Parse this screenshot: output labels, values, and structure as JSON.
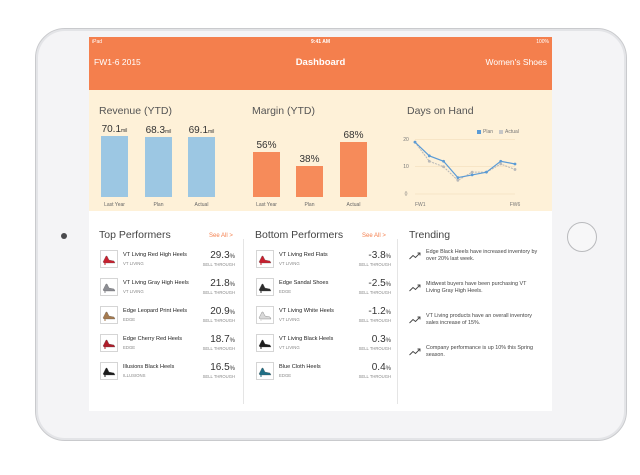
{
  "status": {
    "carrier": "iPad",
    "time": "9:41 AM",
    "battery": "100%"
  },
  "nav": {
    "left": "FW1-6 2015",
    "title": "Dashboard",
    "right": "Women's Shoes"
  },
  "colors": {
    "header": "#f47f4d",
    "kpi_bg": "#fef1d8",
    "revenue_bar": "#9cc7e3",
    "margin_bar": "#f68b5a",
    "accent": "#f47f4d"
  },
  "revenue": {
    "title": "Revenue (YTD)",
    "bars": [
      {
        "label": "Last Year",
        "value": "70.1",
        "unit": "mil",
        "amount": 70.1
      },
      {
        "label": "Plan",
        "value": "68.3",
        "unit": "mil",
        "amount": 68.3
      },
      {
        "label": "Actual",
        "value": "69.1",
        "unit": "mil",
        "amount": 69.1
      }
    ]
  },
  "margin": {
    "title": "Margin (YTD)",
    "bars": [
      {
        "label": "Last Year",
        "value": "56%",
        "amount": 56
      },
      {
        "label": "Plan",
        "value": "38%",
        "amount": 38
      },
      {
        "label": "Actual",
        "value": "68%",
        "amount": 68
      }
    ]
  },
  "days_on_hand": {
    "title": "Days on Hand",
    "legend": [
      "Plan",
      "Actual"
    ],
    "x_start": "FW1",
    "x_end": "FW6",
    "y_ticks": [
      "20",
      "10",
      "0"
    ]
  },
  "chart_data": {
    "type": "line",
    "title": "Days on Hand",
    "x": [
      "FW1",
      "",
      "",
      "",
      "",
      "",
      "",
      "FW6"
    ],
    "series": [
      {
        "name": "Plan",
        "values": [
          19,
          14,
          12,
          6,
          7,
          8,
          12,
          11
        ]
      },
      {
        "name": "Actual",
        "values": [
          19,
          12,
          10,
          5,
          8,
          8,
          11,
          9
        ]
      }
    ],
    "ylim": [
      0,
      22
    ],
    "y_ticks": [
      0,
      10,
      20
    ],
    "legend": "top-right"
  },
  "top": {
    "title": "Top Performers",
    "see_all": "See All >",
    "items": [
      {
        "name": "VT Living Red High Heels",
        "brand": "VT LIVING",
        "pct": "29.3",
        "sub": "SELL THROUGH",
        "shoe": "#c8202f"
      },
      {
        "name": "VT Living Gray High Heels",
        "brand": "VT LIVING",
        "pct": "21.8",
        "sub": "SELL THROUGH",
        "shoe": "#8c8d93"
      },
      {
        "name": "Edge Leopard Print Heels",
        "brand": "EDGE",
        "pct": "20.9",
        "sub": "SELL THROUGH",
        "shoe": "#a57a4f"
      },
      {
        "name": "Edge Cherry Red Heels",
        "brand": "EDGE",
        "pct": "18.7",
        "sub": "SELL THROUGH",
        "shoe": "#b01d2a"
      },
      {
        "name": "Illusions Black Heels",
        "brand": "ILLUSIONS",
        "pct": "16.5",
        "sub": "SELL THROUGH",
        "shoe": "#1c1c1c"
      }
    ]
  },
  "bottom": {
    "title": "Bottom Performers",
    "see_all": "See All >",
    "items": [
      {
        "name": "VT Living Red Flats",
        "brand": "VT LIVING",
        "pct": "-3.8",
        "sub": "SELL THROUGH",
        "shoe": "#c8202f"
      },
      {
        "name": "Edge Sandal Shoes",
        "brand": "EDGE",
        "pct": "-2.5",
        "sub": "SELL THROUGH",
        "shoe": "#2c2c2c"
      },
      {
        "name": "VT Living White Heels",
        "brand": "VT LIVING",
        "pct": "-1.2",
        "sub": "SELL THROUGH",
        "shoe": "#d9d9d9"
      },
      {
        "name": "VT Living Black Heels",
        "brand": "VT LIVING",
        "pct": "0.3",
        "sub": "SELL THROUGH",
        "shoe": "#1c1c1c"
      },
      {
        "name": "Blue Cloth Heels",
        "brand": "EDGE",
        "pct": "0.4",
        "sub": "SELL THROUGH",
        "shoe": "#1f6f86"
      }
    ]
  },
  "pct_unit": "%",
  "trending": {
    "title": "Trending",
    "icon": "trending-up-icon",
    "items": [
      "Edge Black Heels have increased inventory by over 20% last week.",
      "Midwest buyers have been purchasing VT Living Gray High Heels.",
      "VT Living products have an overall inventory sales increase of 15%.",
      "Company performance is up 10% this Spring season."
    ]
  }
}
